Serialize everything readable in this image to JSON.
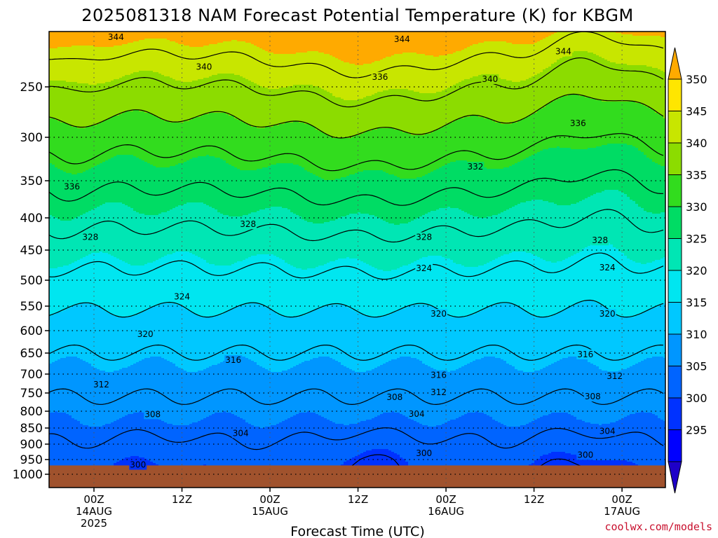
{
  "chart_data": {
    "type": "heatmap",
    "title": "2025081318 NAM Forecast Potential Temperature (K) for KBGM",
    "xlabel": "Forecast Time (UTC)",
    "ylabel": "",
    "y_scale": "log-pressure",
    "y_reversed": true,
    "y_ticks": [
      250,
      300,
      350,
      400,
      450,
      500,
      550,
      600,
      650,
      700,
      750,
      800,
      850,
      900,
      950,
      1000
    ],
    "ylim": [
      1000,
      200
    ],
    "x_range_hours": [
      -6,
      54
    ],
    "x_ticks": [
      {
        "hour": 0,
        "line1": "00Z",
        "line2": "14AUG",
        "line3": "2025"
      },
      {
        "hour": 12,
        "line1": "12Z",
        "line2": "",
        "line3": ""
      },
      {
        "hour": 24,
        "line1": "00Z",
        "line2": "15AUG",
        "line3": ""
      },
      {
        "hour": 36,
        "line1": "12Z",
        "line2": "",
        "line3": ""
      },
      {
        "hour": 48,
        "line1": "00Z",
        "line2": "16AUG",
        "line3": ""
      },
      {
        "hour": 60,
        "line1": "12Z",
        "line2": "",
        "line3": ""
      },
      {
        "hour": 72,
        "line1": "00Z",
        "line2": "17AUG",
        "line3": ""
      }
    ],
    "grid": true,
    "colorbar": {
      "levels": [
        295,
        300,
        305,
        310,
        315,
        320,
        325,
        330,
        335,
        340,
        345,
        350
      ],
      "labels": [
        "350",
        "345",
        "340",
        "335",
        "330",
        "325",
        "320",
        "315",
        "310",
        "305",
        "300",
        "295"
      ],
      "colors": [
        "#1e00c8",
        "#0000ff",
        "#0032ff",
        "#0064ff",
        "#0096ff",
        "#00c8ff",
        "#00e6f0",
        "#00e6b4",
        "#00dc64",
        "#32dc1e",
        "#8cdc00",
        "#c8e600",
        "#ffe600",
        "#ffaa00"
      ],
      "extend": "both"
    },
    "contour_interval": 4,
    "contour_labels": [
      {
        "value": "344",
        "hour": 3,
        "p": 205
      },
      {
        "value": "344",
        "hour": 42,
        "p": 207
      },
      {
        "value": "344",
        "hour": 64,
        "p": 218
      },
      {
        "value": "340",
        "hour": 15,
        "p": 232
      },
      {
        "value": "340",
        "hour": 54,
        "p": 243
      },
      {
        "value": "336",
        "hour": 39,
        "p": 241
      },
      {
        "value": "336",
        "hour": 66,
        "p": 286
      },
      {
        "value": "336",
        "hour": -3,
        "p": 358
      },
      {
        "value": "332",
        "hour": 52,
        "p": 334
      },
      {
        "value": "328",
        "hour": -0.5,
        "p": 430
      },
      {
        "value": "328",
        "hour": 21,
        "p": 410
      },
      {
        "value": "328",
        "hour": 45,
        "p": 430
      },
      {
        "value": "328",
        "hour": 69,
        "p": 435
      },
      {
        "value": "324",
        "hour": 45,
        "p": 480
      },
      {
        "value": "324",
        "hour": 12,
        "p": 532
      },
      {
        "value": "324",
        "hour": 70,
        "p": 479
      },
      {
        "value": "320",
        "hour": 47,
        "p": 566
      },
      {
        "value": "320",
        "hour": 7,
        "p": 608
      },
      {
        "value": "320",
        "hour": 70,
        "p": 566
      },
      {
        "value": "316",
        "hour": 19,
        "p": 667
      },
      {
        "value": "316",
        "hour": 47,
        "p": 703
      },
      {
        "value": "316",
        "hour": 67,
        "p": 653
      },
      {
        "value": "312",
        "hour": 1,
        "p": 728
      },
      {
        "value": "312",
        "hour": 47,
        "p": 748
      },
      {
        "value": "312",
        "hour": 71,
        "p": 706
      },
      {
        "value": "308",
        "hour": 41,
        "p": 762
      },
      {
        "value": "308",
        "hour": 68,
        "p": 760
      },
      {
        "value": "308",
        "hour": 8,
        "p": 809
      },
      {
        "value": "304",
        "hour": 44,
        "p": 808
      },
      {
        "value": "304",
        "hour": 20,
        "p": 866
      },
      {
        "value": "304",
        "hour": 70,
        "p": 860
      },
      {
        "value": "300",
        "hour": 45,
        "p": 930
      },
      {
        "value": "300",
        "hour": 67,
        "p": 935
      },
      {
        "value": "300",
        "hour": 6,
        "p": 968
      }
    ],
    "surface_pressure": 970,
    "surface_color": "#a0522d"
  },
  "credit": "coolwx.com/models"
}
